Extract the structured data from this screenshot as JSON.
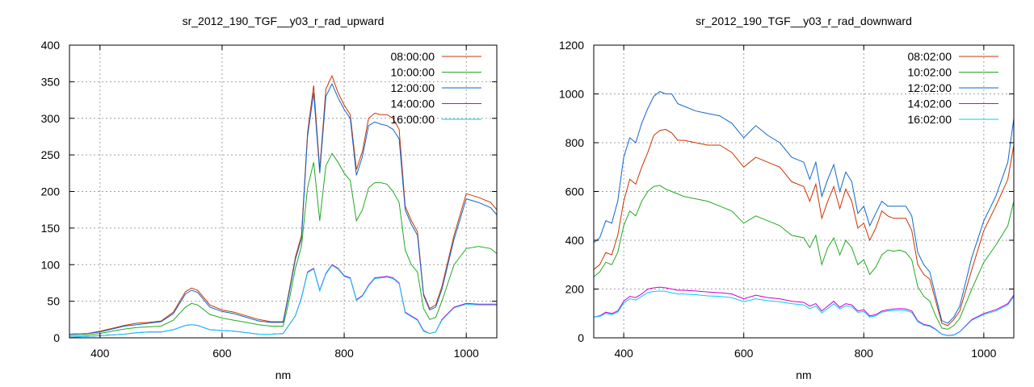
{
  "chart_data": [
    {
      "type": "line",
      "title": "sr_2012_190_TGF__y03_r_rad_upward",
      "xlabel": "nm",
      "ylabel": "",
      "xlim": [
        350,
        1050
      ],
      "ylim": [
        0,
        400
      ],
      "xticks": [
        400,
        600,
        800,
        1000
      ],
      "yticks": [
        0,
        50,
        100,
        150,
        200,
        250,
        300,
        350,
        400
      ],
      "grid": true,
      "legend_position": "top-right",
      "x": [
        350,
        380,
        400,
        420,
        440,
        460,
        480,
        500,
        520,
        540,
        550,
        560,
        580,
        600,
        620,
        640,
        660,
        680,
        700,
        710,
        720,
        730,
        740,
        750,
        760,
        770,
        780,
        790,
        800,
        810,
        820,
        830,
        840,
        850,
        860,
        870,
        880,
        890,
        900,
        910,
        920,
        930,
        940,
        950,
        960,
        980,
        1000,
        1020,
        1040,
        1050
      ],
      "series": [
        {
          "name": "08:00:00",
          "color": "#cc3300",
          "values": [
            5,
            6,
            9,
            13,
            17,
            20,
            21,
            23,
            35,
            63,
            68,
            65,
            45,
            38,
            35,
            30,
            25,
            22,
            22,
            65,
            110,
            140,
            280,
            345,
            230,
            340,
            358,
            335,
            318,
            305,
            230,
            255,
            300,
            307,
            305,
            305,
            300,
            285,
            180,
            160,
            145,
            60,
            40,
            45,
            70,
            140,
            197,
            192,
            185,
            175
          ]
        },
        {
          "name": "10:00:00",
          "color": "#22aa22",
          "values": [
            3,
            4,
            6,
            9,
            12,
            14,
            15,
            16,
            24,
            42,
            47,
            45,
            32,
            27,
            24,
            21,
            18,
            16,
            16,
            52,
            95,
            125,
            205,
            240,
            160,
            235,
            252,
            240,
            225,
            215,
            160,
            175,
            205,
            212,
            212,
            210,
            200,
            185,
            120,
            100,
            90,
            40,
            25,
            28,
            50,
            100,
            122,
            125,
            122,
            115
          ]
        },
        {
          "name": "12:00:00",
          "color": "#1166cc",
          "values": [
            5,
            6,
            8,
            12,
            16,
            18,
            20,
            22,
            33,
            60,
            65,
            62,
            42,
            36,
            33,
            28,
            23,
            21,
            21,
            62,
            107,
            135,
            275,
            335,
            225,
            330,
            347,
            328,
            312,
            300,
            222,
            248,
            290,
            295,
            292,
            290,
            285,
            272,
            175,
            155,
            140,
            58,
            38,
            42,
            66,
            135,
            190,
            185,
            178,
            168
          ]
        },
        {
          "name": "14:00:00",
          "color": "#cc00cc",
          "values": [
            1,
            2,
            3,
            4,
            5,
            7,
            8,
            8,
            11,
            17,
            18,
            17,
            11,
            10,
            9,
            7,
            5,
            5,
            6,
            18,
            30,
            55,
            90,
            95,
            65,
            88,
            100,
            95,
            85,
            82,
            52,
            58,
            72,
            82,
            83,
            84,
            82,
            75,
            35,
            30,
            25,
            10,
            6,
            8,
            25,
            42,
            47,
            46,
            46,
            46
          ]
        },
        {
          "name": "16:00:00",
          "color": "#00ccff",
          "values": [
            1,
            2,
            3,
            4,
            5,
            7,
            8,
            8,
            11,
            17,
            18,
            17,
            11,
            10,
            9,
            7,
            5,
            5,
            6,
            18,
            30,
            54,
            89,
            94,
            64,
            87,
            99,
            94,
            84,
            81,
            51,
            57,
            71,
            81,
            82,
            83,
            81,
            74,
            34,
            29,
            24,
            9,
            6,
            8,
            24,
            41,
            46,
            45,
            45,
            45
          ]
        }
      ]
    },
    {
      "type": "line",
      "title": "sr_2012_190_TGF__y03_r_rad_downward",
      "xlabel": "nm",
      "ylabel": "",
      "xlim": [
        350,
        1050
      ],
      "ylim": [
        0,
        1200
      ],
      "xticks": [
        400,
        600,
        800,
        1000
      ],
      "yticks": [
        0,
        200,
        400,
        600,
        800,
        1000,
        1200
      ],
      "grid": true,
      "legend_position": "top-right",
      "x": [
        350,
        360,
        370,
        380,
        390,
        400,
        410,
        420,
        430,
        440,
        450,
        460,
        470,
        480,
        490,
        500,
        520,
        540,
        560,
        580,
        600,
        620,
        640,
        660,
        680,
        700,
        710,
        720,
        730,
        740,
        750,
        760,
        770,
        780,
        790,
        800,
        810,
        820,
        830,
        840,
        850,
        860,
        870,
        880,
        890,
        900,
        910,
        920,
        930,
        940,
        950,
        960,
        980,
        1000,
        1020,
        1040,
        1050
      ],
      "series": [
        {
          "name": "08:02:00",
          "color": "#cc3300",
          "values": [
            280,
            300,
            350,
            340,
            420,
            560,
            650,
            630,
            700,
            760,
            830,
            850,
            855,
            840,
            810,
            810,
            800,
            790,
            790,
            760,
            700,
            740,
            720,
            700,
            640,
            620,
            560,
            630,
            490,
            560,
            620,
            530,
            610,
            560,
            450,
            470,
            400,
            450,
            520,
            500,
            490,
            490,
            490,
            440,
            300,
            260,
            240,
            150,
            60,
            50,
            75,
            110,
            280,
            440,
            540,
            650,
            790
          ]
        },
        {
          "name": "10:02:00",
          "color": "#22aa22",
          "values": [
            250,
            270,
            310,
            300,
            350,
            460,
            520,
            500,
            560,
            600,
            620,
            625,
            610,
            600,
            590,
            580,
            570,
            560,
            540,
            520,
            470,
            500,
            480,
            460,
            420,
            410,
            370,
            420,
            300,
            370,
            410,
            340,
            400,
            370,
            300,
            320,
            260,
            290,
            340,
            360,
            355,
            360,
            350,
            320,
            210,
            170,
            150,
            90,
            40,
            35,
            50,
            80,
            200,
            310,
            380,
            460,
            560
          ]
        },
        {
          "name": "12:02:00",
          "color": "#1166cc",
          "values": [
            390,
            410,
            480,
            470,
            560,
            740,
            820,
            800,
            880,
            940,
            990,
            1010,
            1000,
            1000,
            960,
            950,
            930,
            920,
            910,
            880,
            820,
            870,
            830,
            800,
            740,
            720,
            650,
            720,
            580,
            650,
            710,
            600,
            680,
            640,
            510,
            540,
            460,
            510,
            560,
            540,
            540,
            540,
            540,
            500,
            350,
            300,
            270,
            170,
            70,
            60,
            85,
            130,
            330,
            480,
            580,
            720,
            900
          ]
        },
        {
          "name": "14:02:00",
          "color": "#cc00cc",
          "values": [
            85,
            90,
            105,
            100,
            110,
            150,
            170,
            165,
            180,
            200,
            205,
            208,
            205,
            200,
            195,
            195,
            192,
            188,
            185,
            180,
            160,
            175,
            165,
            160,
            150,
            145,
            130,
            140,
            110,
            130,
            150,
            125,
            140,
            135,
            110,
            115,
            90,
            95,
            110,
            115,
            118,
            120,
            118,
            110,
            70,
            55,
            50,
            35,
            15,
            10,
            12,
            25,
            75,
            100,
            115,
            140,
            175
          ]
        },
        {
          "name": "16:02:00",
          "color": "#00ccff",
          "values": [
            85,
            88,
            100,
            95,
            105,
            142,
            160,
            155,
            170,
            185,
            190,
            192,
            190,
            185,
            180,
            180,
            177,
            172,
            170,
            165,
            148,
            160,
            152,
            148,
            140,
            135,
            120,
            130,
            102,
            120,
            140,
            118,
            132,
            128,
            104,
            108,
            85,
            90,
            105,
            110,
            112,
            114,
            112,
            104,
            66,
            52,
            47,
            33,
            14,
            9,
            11,
            24,
            72,
            96,
            110,
            135,
            170
          ]
        }
      ]
    }
  ]
}
